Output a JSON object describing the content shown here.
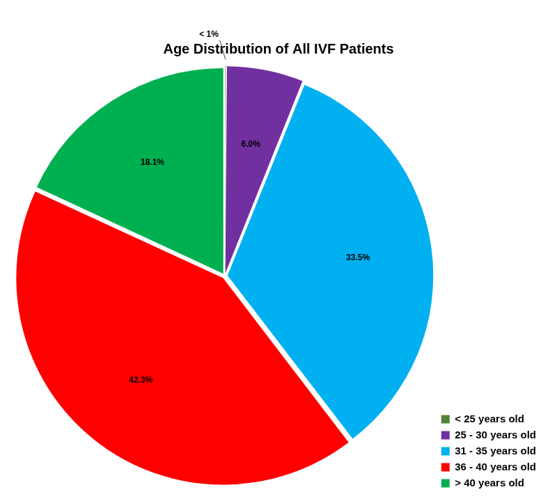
{
  "chart_data": {
    "type": "pie",
    "title": "Age Distribution of All IVF Patients",
    "categories": [
      "< 25 years old",
      "25 - 30 years old",
      "31 - 35 years old",
      "36 - 40 years old",
      "> 40 years old"
    ],
    "values": [
      0.1,
      6.0,
      33.5,
      42.3,
      18.1
    ],
    "value_labels": [
      "< 1%",
      "6.0%",
      "33.5%",
      "42.3%",
      "18.1%"
    ],
    "colors": [
      "#548235",
      "#7030a0",
      "#00b0f0",
      "#ff0000",
      "#00b050"
    ],
    "data_labels": true,
    "legend": "bottom-right"
  }
}
